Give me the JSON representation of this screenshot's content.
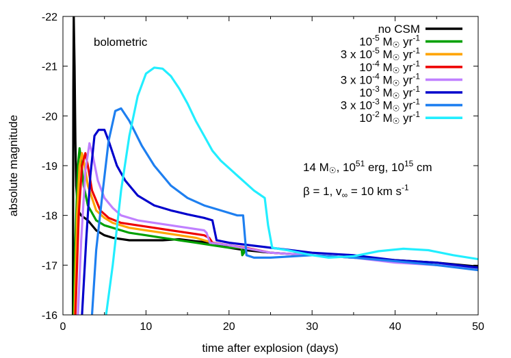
{
  "chart_data": {
    "type": "line",
    "xlabel": "time after explosion (days)",
    "ylabel": "absolute magnitude",
    "xlim": [
      0,
      50
    ],
    "ylim": [
      -16,
      -22
    ],
    "y_inverted": true,
    "x_ticks": [
      0,
      10,
      20,
      30,
      40,
      50
    ],
    "y_ticks": [
      -22,
      -21,
      -20,
      -19,
      -18,
      -17,
      -16
    ],
    "x_tick_labels": [
      "0",
      "10",
      "20",
      "30",
      "40",
      "50"
    ],
    "y_tick_labels": [
      "-22",
      "-21",
      "-20",
      "-19",
      "-18",
      "-17",
      "-16"
    ],
    "grid": false,
    "legend_position": "top-right",
    "annotations": {
      "band": "bolometric",
      "params_line1": {
        "mass": "14 M",
        "energy_base": ", 10",
        "energy_exp": "51",
        "energy_unit": " erg, 10",
        "radius_exp": "15",
        "radius_unit": " cm"
      },
      "params_line2": {
        "beta": "β = 1, v",
        "vinf_sub": "∞",
        "vinf_val": " = 10 km s",
        "vinf_exp": "-1"
      }
    },
    "series": [
      {
        "name": "no CSM",
        "color": "#000000",
        "points": [
          [
            1.2,
            -16
          ],
          [
            1.25,
            -20.5
          ],
          [
            1.3,
            -22
          ],
          [
            1.4,
            -21
          ],
          [
            1.5,
            -19.5
          ],
          [
            1.6,
            -18.6
          ],
          [
            1.8,
            -18.1
          ],
          [
            2.2,
            -18.0
          ],
          [
            3,
            -17.9
          ],
          [
            4,
            -17.7
          ],
          [
            5,
            -17.6
          ],
          [
            6,
            -17.55
          ],
          [
            8,
            -17.5
          ],
          [
            10,
            -17.5
          ],
          [
            12,
            -17.5
          ],
          [
            14,
            -17.52
          ],
          [
            16,
            -17.48
          ],
          [
            18,
            -17.45
          ],
          [
            20,
            -17.35
          ],
          [
            22,
            -17.3
          ],
          [
            25,
            -17.25
          ],
          [
            30,
            -17.2
          ],
          [
            35,
            -17.15
          ],
          [
            40,
            -17.1
          ],
          [
            45,
            -17.05
          ],
          [
            50,
            -16.97
          ]
        ]
      },
      {
        "name": "10-5 M☉ yr-1",
        "label_base": "10",
        "label_exp": "-5",
        "label_unit": " yr",
        "color": "#00a000",
        "points": [
          [
            1.3,
            -16
          ],
          [
            1.5,
            -17.5
          ],
          [
            1.8,
            -19.0
          ],
          [
            2.0,
            -19.35
          ],
          [
            2.2,
            -19.1
          ],
          [
            2.5,
            -18.6
          ],
          [
            3,
            -18.2
          ],
          [
            4,
            -17.9
          ],
          [
            5,
            -17.8
          ],
          [
            6,
            -17.75
          ],
          [
            8,
            -17.65
          ],
          [
            10,
            -17.6
          ],
          [
            12,
            -17.55
          ],
          [
            14,
            -17.5
          ],
          [
            16,
            -17.45
          ],
          [
            18,
            -17.4
          ],
          [
            20,
            -17.35
          ],
          [
            21.5,
            -17.35
          ],
          [
            21.6,
            -17.2
          ],
          [
            21.8,
            -17.25
          ],
          [
            21.9,
            -17.35
          ]
        ]
      },
      {
        "name": "3 x 10-5 M☉ yr-1",
        "label_base": "3 x 10",
        "label_exp": "-5",
        "label_unit": " yr",
        "color": "#ffa500",
        "points": [
          [
            1.4,
            -16
          ],
          [
            1.7,
            -18.0
          ],
          [
            2.0,
            -19.0
          ],
          [
            2.3,
            -19.25
          ],
          [
            2.6,
            -19.0
          ],
          [
            3,
            -18.6
          ],
          [
            4,
            -18.1
          ],
          [
            5,
            -17.95
          ],
          [
            6,
            -17.85
          ],
          [
            8,
            -17.75
          ],
          [
            10,
            -17.7
          ],
          [
            12,
            -17.65
          ],
          [
            14,
            -17.6
          ],
          [
            16,
            -17.55
          ],
          [
            18,
            -17.45
          ],
          [
            20,
            -17.4
          ],
          [
            21.5,
            -17.35
          ]
        ]
      },
      {
        "name": "10-4 M☉ yr-1",
        "label_base": "10",
        "label_exp": "-4",
        "label_unit": " yr",
        "color": "#ee0000",
        "points": [
          [
            1.5,
            -16
          ],
          [
            1.9,
            -18.0
          ],
          [
            2.3,
            -19.0
          ],
          [
            2.7,
            -19.25
          ],
          [
            3.0,
            -19.0
          ],
          [
            3.5,
            -18.5
          ],
          [
            4.5,
            -18.1
          ],
          [
            5.5,
            -17.95
          ],
          [
            7,
            -17.85
          ],
          [
            9,
            -17.8
          ],
          [
            11,
            -17.75
          ],
          [
            13,
            -17.7
          ],
          [
            15,
            -17.65
          ],
          [
            17,
            -17.6
          ],
          [
            17.6,
            -17.55
          ],
          [
            18,
            -17.45
          ],
          [
            20,
            -17.4
          ],
          [
            22,
            -17.35
          ],
          [
            25,
            -17.25
          ],
          [
            30,
            -17.2
          ]
        ]
      },
      {
        "name": "3 x 10-4 M☉ yr-1",
        "label_base": "3 x 10",
        "label_exp": "-4",
        "label_unit": " yr",
        "color": "#c080ff",
        "points": [
          [
            1.8,
            -16
          ],
          [
            2.2,
            -17.5
          ],
          [
            2.7,
            -18.9
          ],
          [
            3.2,
            -19.45
          ],
          [
            3.6,
            -19.2
          ],
          [
            4.2,
            -18.7
          ],
          [
            5,
            -18.35
          ],
          [
            6,
            -18.15
          ],
          [
            7,
            -18.0
          ],
          [
            9,
            -17.9
          ],
          [
            11,
            -17.85
          ],
          [
            13,
            -17.8
          ],
          [
            15,
            -17.75
          ],
          [
            17,
            -17.7
          ],
          [
            17.3,
            -17.65
          ],
          [
            17.7,
            -17.45
          ],
          [
            20,
            -17.4
          ],
          [
            25,
            -17.25
          ],
          [
            30,
            -17.2
          ],
          [
            35,
            -17.15
          ],
          [
            40,
            -17.05
          ],
          [
            45,
            -17.0
          ],
          [
            50,
            -16.95
          ]
        ]
      },
      {
        "name": "10-3 M☉ yr-1",
        "label_base": "10",
        "label_exp": "-3",
        "label_unit": " yr",
        "color": "#0000cc",
        "points": [
          [
            2.3,
            -16
          ],
          [
            2.8,
            -17.5
          ],
          [
            3.3,
            -18.8
          ],
          [
            3.8,
            -19.6
          ],
          [
            4.3,
            -19.72
          ],
          [
            5,
            -19.72
          ],
          [
            5.5,
            -19.5
          ],
          [
            6.5,
            -19.0
          ],
          [
            7.5,
            -18.7
          ],
          [
            9,
            -18.4
          ],
          [
            11,
            -18.2
          ],
          [
            13,
            -18.1
          ],
          [
            15,
            -18.02
          ],
          [
            17,
            -17.95
          ],
          [
            18,
            -17.9
          ],
          [
            18.5,
            -17.5
          ],
          [
            20,
            -17.45
          ],
          [
            25,
            -17.35
          ],
          [
            30,
            -17.25
          ],
          [
            35,
            -17.2
          ],
          [
            40,
            -17.1
          ],
          [
            45,
            -17.05
          ],
          [
            50,
            -16.95
          ]
        ]
      },
      {
        "name": "3 x 10-3 M☉ yr-1",
        "label_base": "3 x 10",
        "label_exp": "-3",
        "label_unit": " yr",
        "color": "#1e7ff0",
        "points": [
          [
            3.5,
            -16
          ],
          [
            4.0,
            -17.3
          ],
          [
            4.8,
            -18.5
          ],
          [
            5.5,
            -19.5
          ],
          [
            6.3,
            -20.1
          ],
          [
            7,
            -20.15
          ],
          [
            8,
            -19.9
          ],
          [
            9.5,
            -19.4
          ],
          [
            11,
            -19.0
          ],
          [
            13,
            -18.6
          ],
          [
            15,
            -18.35
          ],
          [
            17,
            -18.2
          ],
          [
            19,
            -18.1
          ],
          [
            21,
            -18.0
          ],
          [
            21.7,
            -18.0
          ],
          [
            22.1,
            -17.2
          ],
          [
            23,
            -17.15
          ],
          [
            25,
            -17.15
          ],
          [
            30,
            -17.2
          ],
          [
            35,
            -17.15
          ],
          [
            40,
            -17.08
          ],
          [
            45,
            -17.0
          ],
          [
            50,
            -16.9
          ]
        ]
      },
      {
        "name": "10-2 M☉ yr-1",
        "label_base": "10",
        "label_exp": "-2",
        "label_unit": " yr",
        "color": "#22eeff",
        "points": [
          [
            5.2,
            -16
          ],
          [
            6,
            -17.0
          ],
          [
            7,
            -18.5
          ],
          [
            8,
            -19.6
          ],
          [
            9,
            -20.4
          ],
          [
            10,
            -20.85
          ],
          [
            11,
            -20.97
          ],
          [
            12,
            -20.95
          ],
          [
            13,
            -20.8
          ],
          [
            14,
            -20.55
          ],
          [
            15,
            -20.25
          ],
          [
            16,
            -19.9
          ],
          [
            17,
            -19.6
          ],
          [
            18,
            -19.3
          ],
          [
            19,
            -19.1
          ],
          [
            20,
            -18.95
          ],
          [
            21,
            -18.8
          ],
          [
            22,
            -18.65
          ],
          [
            23,
            -18.5
          ],
          [
            24.3,
            -18.35
          ],
          [
            24.7,
            -17.8
          ],
          [
            25.2,
            -17.35
          ],
          [
            27,
            -17.3
          ],
          [
            30,
            -17.2
          ],
          [
            32,
            -17.15
          ],
          [
            35,
            -17.18
          ],
          [
            38,
            -17.28
          ],
          [
            41,
            -17.33
          ],
          [
            44,
            -17.3
          ],
          [
            47,
            -17.2
          ],
          [
            50,
            -17.12
          ]
        ]
      }
    ]
  }
}
